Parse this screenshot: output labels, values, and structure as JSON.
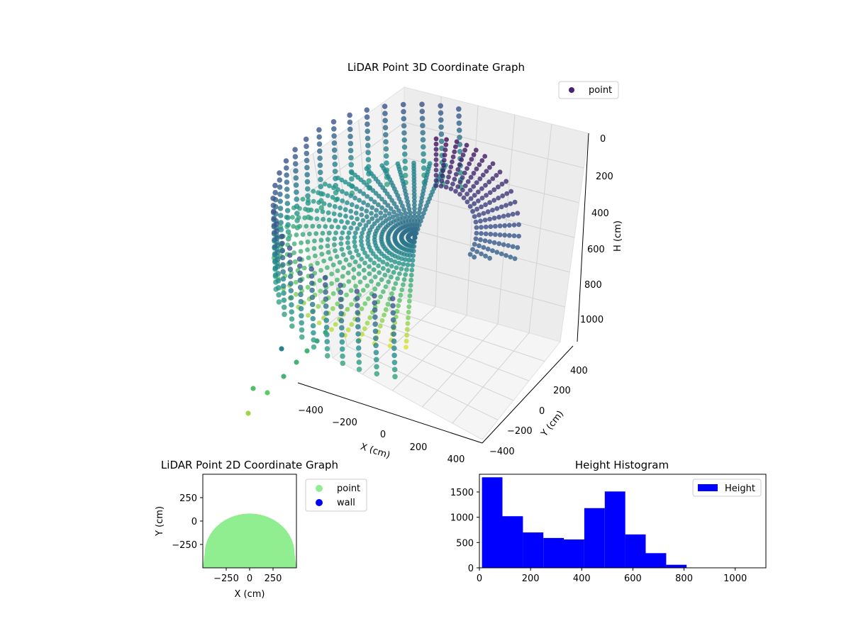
{
  "chart_data": [
    {
      "type": "scatter3d",
      "title": "LiDAR Point 3D Coordinate Graph",
      "xlabel": "X (cm)",
      "ylabel": "Y (cm)",
      "zlabel": "H (cm)",
      "xticks": [
        "−400",
        "−200",
        "0",
        "200",
        "400"
      ],
      "yticks": [
        "400",
        "200",
        "0",
        "−200",
        "−400"
      ],
      "zticks": [
        "0",
        "200",
        "400",
        "600",
        "800",
        "1000"
      ],
      "xlim": [
        -450,
        450
      ],
      "ylim": [
        -450,
        450
      ],
      "zlim": [
        0,
        1100
      ],
      "zinverted": true,
      "colormap": [
        "#440154",
        "#3b528b",
        "#21918c",
        "#5ec962",
        "#fde725"
      ],
      "legend": {
        "label": "point",
        "color": "#482173",
        "position": "top-right"
      },
      "grid": true,
      "description_points": "dome-shaped point cloud of ribbed scan lines"
    },
    {
      "type": "scatter",
      "title": "LiDAR Point 2D Coordinate Graph",
      "xlabel": "X (cm)",
      "ylabel": "Y (cm)",
      "xticks": [
        "−250",
        "0",
        "250"
      ],
      "yticks": [
        "250",
        "0",
        "−250"
      ],
      "xlim": [
        -500,
        500
      ],
      "ylim": [
        -500,
        500
      ],
      "series": [
        {
          "name": "point",
          "color": "#90ee90"
        },
        {
          "name": "wall",
          "color": "#0000ff"
        }
      ],
      "legend_position": "outside-right"
    },
    {
      "type": "histogram",
      "title": "Height Histogram",
      "series_name": "Height",
      "color": "#0000ff",
      "bins": [
        {
          "x0": 10,
          "x1": 90,
          "count": 1790
        },
        {
          "x0": 90,
          "x1": 170,
          "count": 1020
        },
        {
          "x0": 170,
          "x1": 250,
          "count": 700
        },
        {
          "x0": 250,
          "x1": 330,
          "count": 590
        },
        {
          "x0": 330,
          "x1": 410,
          "count": 560
        },
        {
          "x0": 410,
          "x1": 490,
          "count": 1180
        },
        {
          "x0": 490,
          "x1": 570,
          "count": 1510
        },
        {
          "x0": 570,
          "x1": 650,
          "count": 660
        },
        {
          "x0": 650,
          "x1": 730,
          "count": 290
        },
        {
          "x0": 730,
          "x1": 810,
          "count": 60
        },
        {
          "x0": 810,
          "x1": 890,
          "count": 5
        },
        {
          "x0": 890,
          "x1": 970,
          "count": 0
        },
        {
          "x0": 970,
          "x1": 1050,
          "count": 0
        },
        {
          "x0": 1050,
          "x1": 1120,
          "count": 0
        }
      ],
      "xlim": [
        0,
        1120
      ],
      "ylim": [
        0,
        1850
      ],
      "xticks": [
        0,
        200,
        400,
        600,
        800,
        1000
      ],
      "yticks": [
        0,
        500,
        1000,
        1500
      ],
      "legend_position": "top-right"
    }
  ]
}
